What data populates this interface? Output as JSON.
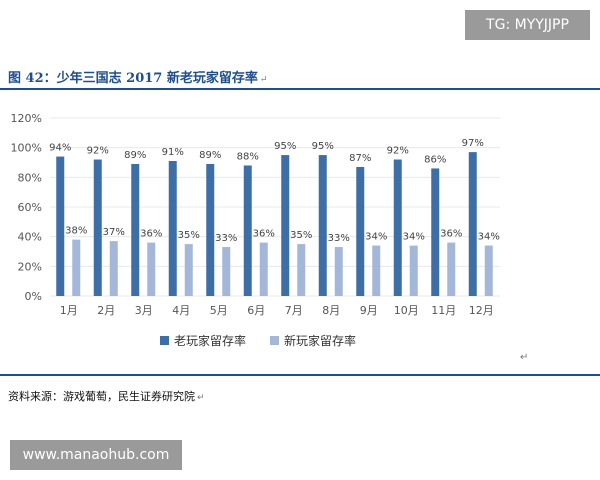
{
  "watermark_top": "TG: MYYJJPP",
  "watermark_bottom": "www.manaohub.com",
  "figure_title": "图 42：少年三国志 2017 新老玩家留存率",
  "edit_mark": "↵",
  "source_text": "资料来源：游戏葡萄，民生证券研究院",
  "chart_data": {
    "type": "bar",
    "categories": [
      "1月",
      "2月",
      "3月",
      "4月",
      "5月",
      "6月",
      "7月",
      "8月",
      "9月",
      "10月",
      "11月",
      "12月"
    ],
    "series": [
      {
        "name": "老玩家留存率",
        "color": "#3d6ea5",
        "values": [
          94,
          92,
          89,
          91,
          89,
          88,
          95,
          95,
          87,
          92,
          86,
          97
        ],
        "labels": [
          "94%",
          "92%",
          "89%",
          "91%",
          "89%",
          "88%",
          "95%",
          "95%",
          "87%",
          "92%",
          "86%",
          "97%"
        ]
      },
      {
        "name": "新玩家留存率",
        "color": "#a4b7d8",
        "values": [
          38,
          37,
          36,
          35,
          33,
          36,
          35,
          33,
          34,
          34,
          36,
          34
        ],
        "labels": [
          "38%",
          "37%",
          "36%",
          "35%",
          "33%",
          "36%",
          "35%",
          "33%",
          "34%",
          "34%",
          "36%",
          "34%"
        ]
      }
    ],
    "ylim": [
      0,
      120
    ],
    "yticks": [
      0,
      20,
      40,
      60,
      80,
      100,
      120
    ],
    "ytick_labels": [
      "0%",
      "20%",
      "40%",
      "60%",
      "80%",
      "100%",
      "120%"
    ],
    "legend_position": "bottom",
    "grid": true
  }
}
